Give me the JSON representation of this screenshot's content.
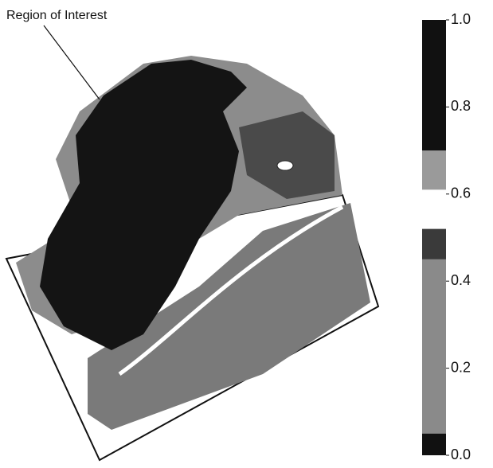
{
  "annotation": "Region of Interest",
  "colorbar": {
    "lim": [
      0,
      1
    ],
    "ticks": [
      {
        "value": 0,
        "label": "0.0"
      },
      0.2,
      0.4,
      0.6,
      0.8,
      {
        "value": 1,
        "label": "1.0"
      }
    ],
    "segments": [
      {
        "from": 0,
        "to": 0.05,
        "color": "#111111"
      },
      {
        "from": 0.05,
        "to": 0.45,
        "color": "#8a8a8a"
      },
      {
        "from": 0.45,
        "to": 0.52,
        "color": "#3a3a3a"
      },
      {
        "from": 0.52,
        "to": 0.61,
        "color": "#ffffff"
      },
      {
        "from": 0.61,
        "to": 0.7,
        "color": "#9a9a9a"
      },
      {
        "from": 0.7,
        "to": 1,
        "color": "#111111"
      }
    ]
  }
}
